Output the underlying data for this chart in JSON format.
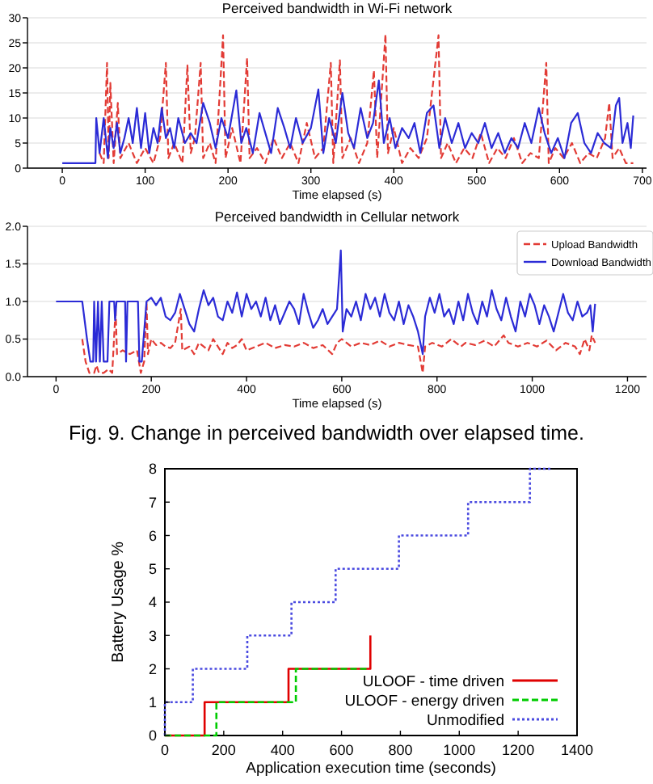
{
  "chart_data": [
    {
      "type": "line",
      "title": "Perceived bandwidth in Wi-Fi network",
      "xlabel": "Time elapsed (s)",
      "xlim": [
        -42,
        705
      ],
      "ylim": [
        0,
        30
      ],
      "xticks": [
        0,
        100,
        200,
        300,
        400,
        500,
        600,
        700
      ],
      "yticks": [
        0,
        5,
        10,
        15,
        20,
        25,
        30
      ],
      "grid": "y",
      "legend": false,
      "series": [
        {
          "color": "#e23b35",
          "line_style": "dashed",
          "x": [
            45,
            50,
            54,
            56,
            58,
            62,
            67,
            70,
            80,
            90,
            100,
            110,
            118,
            125,
            128,
            135,
            145,
            151,
            155,
            160,
            167,
            170,
            178,
            185,
            194,
            197,
            205,
            215,
            223,
            226,
            235,
            245,
            255,
            265,
            275,
            285,
            295,
            305,
            315,
            324,
            327,
            335,
            338,
            348,
            358,
            368,
            376,
            380,
            390,
            393,
            400,
            410,
            420,
            430,
            440,
            454,
            457,
            465,
            475,
            485,
            495,
            505,
            515,
            525,
            535,
            545,
            555,
            565,
            575,
            584,
            587,
            595,
            605,
            615,
            625,
            635,
            645,
            655,
            660,
            664,
            672,
            680,
            689
          ],
          "values": [
            3,
            1,
            21,
            2,
            17,
            1,
            13,
            2,
            5,
            1,
            4,
            1,
            6,
            21,
            2,
            5,
            1,
            20.5,
            3,
            6,
            21,
            2,
            5,
            1,
            26.5,
            2,
            8,
            1,
            22,
            2,
            4,
            1,
            6,
            2,
            5,
            1,
            9,
            2,
            4,
            21,
            1,
            21.5,
            2,
            6,
            1,
            5,
            19.5,
            2,
            26.7,
            3,
            8,
            1,
            4,
            2,
            6,
            26.5,
            2,
            5,
            1,
            4,
            2,
            7,
            1,
            4,
            2,
            6,
            1,
            3,
            2,
            21,
            1,
            4,
            2,
            5,
            1,
            3,
            2,
            6,
            13,
            2,
            4,
            1,
            1
          ]
        },
        {
          "color": "#2b2bd6",
          "line_style": "solid",
          "x": [
            0,
            40,
            41,
            45,
            50,
            55,
            58,
            62,
            66,
            70,
            75,
            80,
            85,
            90,
            95,
            100,
            105,
            110,
            115,
            120,
            125,
            130,
            135,
            140,
            148,
            155,
            162,
            170,
            178,
            185,
            192,
            200,
            210,
            216,
            222,
            230,
            238,
            245,
            252,
            260,
            268,
            275,
            282,
            290,
            300,
            309,
            315,
            322,
            330,
            338,
            345,
            352,
            360,
            368,
            375,
            382,
            388,
            395,
            402,
            410,
            418,
            425,
            432,
            440,
            448,
            455,
            462,
            470,
            478,
            486,
            494,
            502,
            510,
            518,
            526,
            534,
            542,
            550,
            558,
            566,
            575,
            582,
            590,
            598,
            606,
            614,
            622,
            630,
            638,
            646,
            654,
            662,
            668,
            672,
            676,
            682,
            686,
            689
          ],
          "values": [
            1,
            1,
            10,
            3,
            10,
            2,
            8,
            4,
            9,
            3,
            6,
            10,
            5,
            12,
            4,
            11,
            3,
            8,
            5,
            12,
            6,
            8,
            4,
            10,
            5,
            7,
            5,
            13,
            9,
            4,
            10,
            6,
            15.5,
            5,
            8,
            3,
            11,
            7,
            3,
            12,
            8,
            4,
            10,
            5,
            8,
            15.7,
            3,
            10,
            5,
            15,
            7,
            4,
            12,
            6,
            9,
            17.5,
            5,
            10,
            4,
            8,
            6,
            9,
            3,
            11,
            12.5,
            4,
            10,
            5,
            9,
            4,
            7,
            5,
            9,
            4,
            7,
            3,
            6,
            4,
            9,
            5,
            12,
            7,
            3,
            6,
            2,
            9,
            11,
            5,
            3,
            7,
            5,
            4,
            12.5,
            14,
            5,
            9,
            4,
            10.5
          ]
        }
      ]
    },
    {
      "type": "line",
      "title": "Perceived bandwidth in Cellular network",
      "xlabel": "Time elapsed (s)",
      "xlim": [
        -60,
        1240
      ],
      "ylim": [
        0,
        2
      ],
      "xticks": [
        0,
        200,
        400,
        600,
        800,
        1000,
        1200
      ],
      "yticks": [
        {
          "value": 0,
          "label": "0.0"
        },
        {
          "value": 0.5,
          "label": "0.5"
        },
        {
          "value": 1,
          "label": "1.0"
        },
        {
          "value": 1.5,
          "label": "1.5"
        },
        {
          "value": 2,
          "label": "2.0"
        }
      ],
      "grid": "y",
      "legend": "top right",
      "annotations": [
        "Fig. 9. Change in perceived bandwidth over elapsed time."
      ],
      "series": [
        {
          "name": "Upload Bandwidth",
          "color": "#e23b35",
          "line_style": "dashed",
          "x": [
            55,
            62,
            70,
            80,
            85,
            90,
            100,
            110,
            118,
            125,
            128,
            140,
            155,
            170,
            178,
            185,
            190,
            193,
            200,
            210,
            220,
            230,
            240,
            250,
            262,
            265,
            280,
            290,
            300,
            320,
            330,
            340,
            350,
            360,
            370,
            380,
            390,
            400,
            420,
            440,
            460,
            480,
            500,
            520,
            540,
            560,
            580,
            590,
            600,
            620,
            640,
            660,
            680,
            700,
            720,
            740,
            760,
            770,
            775,
            790,
            810,
            830,
            850,
            860,
            880,
            900,
            920,
            940,
            950,
            970,
            990,
            1010,
            1030,
            1050,
            1070,
            1090,
            1100,
            1110,
            1120,
            1125,
            1132
          ],
          "values": [
            0.5,
            0.2,
            0.05,
            0.05,
            0.15,
            0.05,
            0.05,
            0.1,
            0.05,
            0.9,
            0.3,
            0.35,
            0.3,
            0.35,
            0.05,
            0.2,
            1,
            0.3,
            0.5,
            0.42,
            0.45,
            0.4,
            0.38,
            0.45,
            0.9,
            0.35,
            0.4,
            0.3,
            0.45,
            0.35,
            0.5,
            0.4,
            0.3,
            0.45,
            0.38,
            0.42,
            0.5,
            0.35,
            0.4,
            0.45,
            0.38,
            0.42,
            0.4,
            0.45,
            0.38,
            0.42,
            0.3,
            0.45,
            0.5,
            0.4,
            0.45,
            0.42,
            0.48,
            0.4,
            0.45,
            0.42,
            0.4,
            0.05,
            0.4,
            0.45,
            0.4,
            0.5,
            0.4,
            0.45,
            0.42,
            0.48,
            0.4,
            0.55,
            0.45,
            0.4,
            0.45,
            0.4,
            0.48,
            0.35,
            0.45,
            0.4,
            0.3,
            0.5,
            0.35,
            0.55,
            0.45
          ]
        },
        {
          "name": "Download Bandwidth",
          "color": "#2b2bd6",
          "line_style": "solid",
          "x": [
            0,
            55,
            65,
            72,
            78,
            80,
            84,
            88,
            92,
            96,
            100,
            108,
            112,
            122,
            124,
            127,
            145,
            147,
            150,
            172,
            175,
            180,
            190,
            200,
            210,
            220,
            230,
            240,
            250,
            260,
            270,
            280,
            290,
            300,
            310,
            320,
            330,
            340,
            350,
            360,
            370,
            380,
            390,
            400,
            410,
            420,
            430,
            440,
            450,
            460,
            470,
            480,
            490,
            500,
            510,
            520,
            530,
            540,
            550,
            560,
            570,
            580,
            590,
            598,
            602,
            610,
            620,
            630,
            640,
            650,
            660,
            670,
            680,
            690,
            700,
            710,
            720,
            730,
            740,
            750,
            760,
            770,
            775,
            785,
            795,
            805,
            815,
            825,
            835,
            845,
            855,
            865,
            875,
            885,
            895,
            905,
            915,
            925,
            935,
            945,
            955,
            965,
            975,
            985,
            995,
            1005,
            1015,
            1025,
            1035,
            1045,
            1055,
            1065,
            1075,
            1085,
            1095,
            1105,
            1115,
            1122,
            1127,
            1132
          ],
          "values": [
            1,
            1,
            0.5,
            0.2,
            0.2,
            1,
            0.2,
            1,
            0.2,
            1,
            0.2,
            0.2,
            1,
            1,
            0.75,
            1,
            1,
            0.2,
            1,
            1,
            0.2,
            0.2,
            1,
            1.05,
            0.95,
            1.05,
            0.8,
            0.75,
            0.85,
            1.1,
            0.9,
            0.7,
            0.6,
            0.9,
            1.15,
            0.95,
            1.05,
            0.8,
            0.75,
            1,
            0.85,
            1.12,
            0.8,
            1.1,
            0.9,
            1,
            0.8,
            1.05,
            0.75,
            0.95,
            0.7,
            0.85,
            1,
            0.9,
            0.7,
            1.1,
            0.85,
            0.65,
            0.75,
            0.9,
            0.7,
            0.8,
            0.9,
            1.68,
            0.6,
            0.9,
            0.8,
            1,
            0.75,
            1.1,
            0.9,
            1.05,
            0.8,
            1.1,
            0.85,
            0.75,
            1,
            0.7,
            0.95,
            0.8,
            0.6,
            0.3,
            0.8,
            1.05,
            0.85,
            1.1,
            0.8,
            0.9,
            0.7,
            1,
            0.75,
            1.1,
            0.85,
            0.7,
            1,
            0.8,
            1.15,
            0.9,
            0.75,
            1.05,
            0.8,
            0.6,
            1,
            0.8,
            1.1,
            0.95,
            0.7,
            0.95,
            0.8,
            0.6,
            0.85,
            1.1,
            0.85,
            0.75,
            1,
            0.8,
            0.85,
            0.95,
            0.6,
            0.97
          ]
        }
      ]
    },
    {
      "type": "step",
      "xlabel": "Application execution time (seconds)",
      "ylabel": "Battery Usage %",
      "xlim": [
        0,
        1400
      ],
      "ylim": [
        0,
        8
      ],
      "xticks": [
        0,
        200,
        400,
        600,
        800,
        1000,
        1200,
        1400
      ],
      "yticks": [
        0,
        1,
        2,
        3,
        4,
        5,
        6,
        7,
        8
      ],
      "legend": "bottom right",
      "series": [
        {
          "name": "ULOOF - time driven",
          "color": "#e00000",
          "line_style": "solid",
          "x": [
            0,
            135,
            420,
            698
          ],
          "values": [
            0,
            1,
            2,
            3
          ]
        },
        {
          "name": "ULOOF - energy driven",
          "color": "#00cc00",
          "line_style": "dashed",
          "x": [
            0,
            175,
            445,
            690
          ],
          "values": [
            0,
            1,
            2,
            2
          ]
        },
        {
          "name": "Unmodified",
          "color": "#4a4ae0",
          "line_style": "dotted",
          "x": [
            0,
            0,
            95,
            280,
            430,
            580,
            795,
            1030,
            1240,
            1315
          ],
          "values": [
            0,
            1,
            2,
            3,
            4,
            5,
            6,
            7,
            8,
            8
          ]
        }
      ]
    }
  ]
}
